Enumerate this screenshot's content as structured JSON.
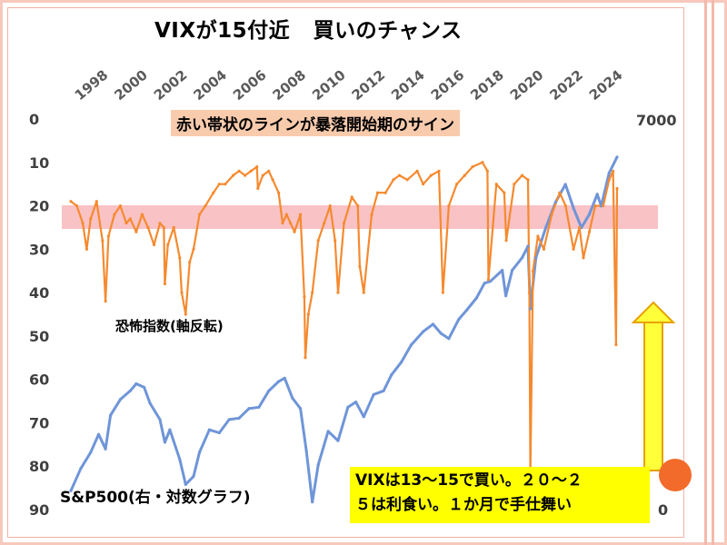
{
  "title": {
    "part1": "VIXが15付近",
    "part2": "買いのチャンス"
  },
  "banner": "赤い帯状のラインが暴落開始期のサイン",
  "vix_label": "恐怖指数(軸反転)",
  "sp_label": "S&P500(右・対数グラフ)",
  "callout": {
    "line1": "VIXは13～15で買い。２０～２",
    "line2": "５は利食い。１か月で手仕舞い"
  },
  "colors": {
    "vix": "#f58a2f",
    "sp500": "#6f95d8",
    "signal_band": "#f7b3b6",
    "arrow_fill": "#ffff3a",
    "arrow_stroke": "#e7a100",
    "banner_bg": "#f8cbad",
    "callout_bg": "#ffff00"
  },
  "chart_data": {
    "type": "line",
    "title": "VIXが15付近　買いのチャンス",
    "x_tick_labels": [
      "1998",
      "2000",
      "2002",
      "2004",
      "2006",
      "2008",
      "2010",
      "2012",
      "2014",
      "2016",
      "2018",
      "2020",
      "2022",
      "2024"
    ],
    "y_left": {
      "label": "恐怖指数(軸反転)",
      "inverted": true,
      "range": [
        0,
        90
      ],
      "ticks": [
        "0",
        "10",
        "20",
        "30",
        "40",
        "50",
        "60",
        "70",
        "80",
        "90"
      ]
    },
    "y_right": {
      "label": "S&P500(右・対数グラフ)",
      "scale": "log",
      "visible_tick_labels": [
        "7000"
      ]
    },
    "x_range": [
      1997.0,
      2024.6
    ],
    "grid": false,
    "annotations": [
      {
        "text": "赤い帯状のラインが暴落開始期のサイン",
        "type": "band",
        "y_from": 20,
        "y_to": 25
      },
      {
        "text": "VIXは13～15で買い。２０～２５は利食い。１か月で手仕舞い",
        "type": "callout_with_arrow"
      }
    ],
    "series": [
      {
        "name": "恐怖指数(軸反転)",
        "axis": "left",
        "x": [
          1997.0,
          1997.3,
          1997.6,
          1997.8,
          1998.0,
          1998.3,
          1998.6,
          1998.75,
          1998.9,
          1999.2,
          1999.5,
          1999.8,
          2000.0,
          2000.3,
          2000.6,
          2000.9,
          2001.2,
          2001.5,
          2001.7,
          2001.75,
          2001.9,
          2002.2,
          2002.5,
          2002.6,
          2002.8,
          2003.0,
          2003.2,
          2003.5,
          2003.8,
          2004.2,
          2004.5,
          2004.8,
          2005.2,
          2005.5,
          2005.8,
          2006.1,
          2006.4,
          2006.45,
          2006.7,
          2007.0,
          2007.2,
          2007.5,
          2007.7,
          2007.9,
          2008.1,
          2008.3,
          2008.6,
          2008.8,
          2008.85,
          2009.0,
          2009.2,
          2009.5,
          2009.8,
          2010.1,
          2010.35,
          2010.5,
          2010.8,
          2011.2,
          2011.5,
          2011.6,
          2011.8,
          2012.2,
          2012.5,
          2012.9,
          2013.3,
          2013.6,
          2014.0,
          2014.5,
          2014.8,
          2015.2,
          2015.6,
          2015.8,
          2016.1,
          2016.5,
          2016.9,
          2017.3,
          2017.8,
          2018.05,
          2018.1,
          2018.5,
          2018.9,
          2019.0,
          2019.4,
          2019.8,
          2020.1,
          2020.17,
          2020.22,
          2020.35,
          2020.6,
          2020.9,
          2021.3,
          2021.7,
          2022.0,
          2022.4,
          2022.7,
          2022.9,
          2023.2,
          2023.5,
          2023.9,
          2024.2,
          2024.4,
          2024.55,
          2024.6
        ],
        "values": [
          19,
          20,
          24,
          30,
          23,
          19,
          28,
          42,
          27,
          22,
          20,
          24,
          23,
          26,
          22,
          25,
          29,
          24,
          25,
          38,
          29,
          25,
          32,
          40,
          45,
          33,
          30,
          22,
          20,
          17,
          15,
          15,
          13,
          12,
          13,
          12,
          11,
          16,
          13,
          12,
          14,
          17,
          24,
          22,
          24,
          26,
          22,
          41,
          55,
          45,
          40,
          28,
          24,
          20,
          28,
          40,
          24,
          18,
          20,
          34,
          40,
          22,
          17,
          17,
          14,
          13,
          14,
          12,
          15,
          13,
          12,
          40,
          20,
          15,
          13,
          11,
          10,
          12,
          37,
          15,
          17,
          28,
          15,
          13,
          14,
          40,
          82,
          35,
          27,
          30,
          22,
          17,
          20,
          30,
          25,
          32,
          26,
          20,
          20,
          14,
          12,
          52,
          16
        ]
      },
      {
        "name": "S&P500(右・対数グラフ)",
        "axis": "right",
        "x": [
          1997.0,
          1997.5,
          1998.0,
          1998.4,
          1998.75,
          1999.0,
          1999.5,
          2000.0,
          2000.3,
          2000.7,
          2001.0,
          2001.5,
          2001.75,
          2002.0,
          2002.5,
          2002.8,
          2003.2,
          2003.5,
          2004.0,
          2004.5,
          2005.0,
          2005.5,
          2006.0,
          2006.5,
          2007.0,
          2007.5,
          2007.8,
          2008.2,
          2008.6,
          2008.9,
          2009.2,
          2009.5,
          2010.0,
          2010.5,
          2011.0,
          2011.4,
          2011.8,
          2012.3,
          2012.8,
          2013.2,
          2013.7,
          2014.2,
          2014.8,
          2015.3,
          2015.7,
          2016.1,
          2016.6,
          2017.0,
          2017.5,
          2017.9,
          2018.2,
          2018.8,
          2018.98,
          2019.3,
          2019.8,
          2020.1,
          2020.22,
          2020.5,
          2021.0,
          2021.5,
          2021.99,
          2022.4,
          2022.8,
          2023.2,
          2023.6,
          2023.8,
          2024.2,
          2024.6
        ],
        "values": [
          790,
          900,
          990,
          1100,
          1010,
          1230,
          1350,
          1420,
          1480,
          1450,
          1320,
          1200,
          1050,
          1130,
          950,
          820,
          860,
          990,
          1130,
          1110,
          1200,
          1210,
          1280,
          1290,
          1420,
          1500,
          1530,
          1360,
          1280,
          1000,
          740,
          920,
          1120,
          1060,
          1290,
          1330,
          1220,
          1390,
          1420,
          1560,
          1680,
          1860,
          2010,
          2100,
          1990,
          1930,
          2160,
          2280,
          2450,
          2670,
          2700,
          2880,
          2480,
          2880,
          3100,
          3320,
          2300,
          3100,
          3700,
          4300,
          4770,
          4150,
          3700,
          4000,
          4500,
          4200,
          5100,
          5600
        ]
      }
    ]
  }
}
